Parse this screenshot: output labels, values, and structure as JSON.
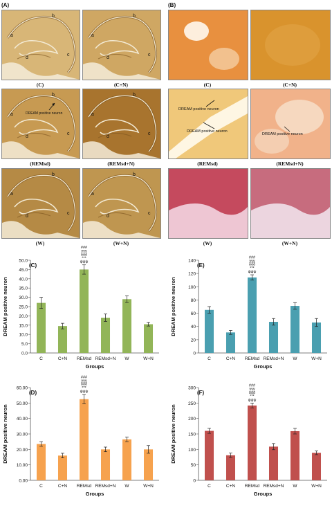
{
  "panels": {
    "A": {
      "tag": "(A)",
      "images": [
        {
          "caption": "(C)",
          "labels": [
            "a",
            "b",
            "c",
            "d"
          ],
          "annotation": ""
        },
        {
          "caption": "(C+N)",
          "labels": [
            "a",
            "b",
            "c",
            "d"
          ],
          "annotation": ""
        },
        {
          "caption": "(REMsd)",
          "labels": [
            "a",
            "b",
            "c",
            "d"
          ],
          "annotation": "DREAM positive neuron"
        },
        {
          "caption": "(REMsd+N)",
          "labels": [
            "a",
            "b",
            "c",
            "d"
          ],
          "annotation": ""
        },
        {
          "caption": "(W)",
          "labels": [
            "a",
            "b",
            "c",
            "d"
          ],
          "annotation": ""
        },
        {
          "caption": "(W+N)",
          "labels": [
            "a",
            "b",
            "c",
            "d"
          ],
          "annotation": ""
        }
      ]
    },
    "B": {
      "tag": "(B)",
      "images": [
        {
          "caption": "(C)",
          "annotations": []
        },
        {
          "caption": "(C+N)",
          "annotations": []
        },
        {
          "caption": "(REMsd)",
          "annotations": [
            "DREAM positive neuron",
            "DREAM positive neuron"
          ]
        },
        {
          "caption": "(REMsd+N)",
          "annotations": [
            "DREAM positive neuron"
          ]
        },
        {
          "caption": "(W)",
          "annotations": []
        },
        {
          "caption": "(W+N)",
          "annotations": []
        }
      ]
    }
  },
  "chart_data": [
    {
      "panel": "(C)",
      "type": "bar",
      "color": "#92b558",
      "categories": [
        "C",
        "C+N",
        "REMsd",
        "REMsd+N",
        "W",
        "W+N"
      ],
      "values": [
        27.0,
        14.5,
        45.0,
        19.0,
        29.0,
        15.5
      ],
      "errors": [
        3.0,
        1.5,
        2.5,
        2.0,
        1.8,
        1.0
      ],
      "ylim": [
        0,
        50
      ],
      "yticks": [
        "0.0",
        "5.0",
        "10.0",
        "15.0",
        "20.0",
        "25.0",
        "30.0",
        "35.0",
        "40.0",
        "45.0",
        "50.0"
      ],
      "xlabel": "Groups",
      "ylabel": "DREAM positive neuron",
      "significance": [
        "###",
        "γγγ",
        "δδδ",
        "***",
        "ψψψ"
      ]
    },
    {
      "panel": "(E)",
      "type": "bar",
      "color": "#4a9fb0",
      "categories": [
        "C",
        "C+N",
        "REMsd",
        "REMsd+N",
        "W",
        "W+N"
      ],
      "values": [
        65,
        31,
        114,
        47,
        71,
        46
      ],
      "errors": [
        5,
        3,
        4,
        5,
        5,
        6
      ],
      "ylim": [
        0,
        140
      ],
      "yticks": [
        "0",
        "20",
        "40",
        "60",
        "80",
        "100",
        "120",
        "140"
      ],
      "xlabel": "Groups",
      "ylabel": "DREAM positive neuron",
      "significance": [
        "###",
        "γγγ",
        "δδδ",
        "***",
        "ψψψ"
      ]
    },
    {
      "panel": "(D)",
      "type": "bar",
      "color": "#f6a24e",
      "categories": [
        "C",
        "C+N",
        "REMsd",
        "REMsd+N",
        "W",
        "W+N"
      ],
      "values": [
        23.5,
        16.0,
        52.5,
        20.0,
        26.5,
        20.0
      ],
      "errors": [
        1.5,
        1.5,
        3.0,
        1.5,
        1.5,
        2.5
      ],
      "ylim": [
        0,
        60
      ],
      "yticks": [
        "0.00",
        "10.00",
        "20.00",
        "30.00",
        "40.00",
        "50.00",
        "60.00"
      ],
      "xlabel": "Groups",
      "ylabel": "DREAM positive neuron",
      "significance": [
        "###",
        "γγγ",
        "δδδ",
        "***",
        "ψψψ"
      ]
    },
    {
      "panel": "(F)",
      "type": "bar",
      "color": "#c0504d",
      "categories": [
        "C",
        "C+N",
        "REMsd",
        "REMsd+N",
        "W",
        "W+N"
      ],
      "values": [
        160,
        81,
        242,
        109,
        159,
        89
      ],
      "errors": [
        8,
        7,
        8,
        10,
        9,
        6
      ],
      "ylim": [
        0,
        300
      ],
      "yticks": [
        "0",
        "50",
        "100",
        "150",
        "200",
        "250",
        "300"
      ],
      "xlabel": "Groups",
      "ylabel": "DREAM positive neuron",
      "significance": [
        "###",
        "γγγ",
        "δδδ",
        "***",
        "ψψψ"
      ]
    }
  ],
  "colors": {
    "hippo_bg": "#c99b4d",
    "hippo_layer": "#f3ead4",
    "hippo_dark": "#7d5520",
    "stain_orange": "#e98c4a",
    "stain_pale": "#f5e3c8",
    "stain_pink": "#d88fa0"
  }
}
